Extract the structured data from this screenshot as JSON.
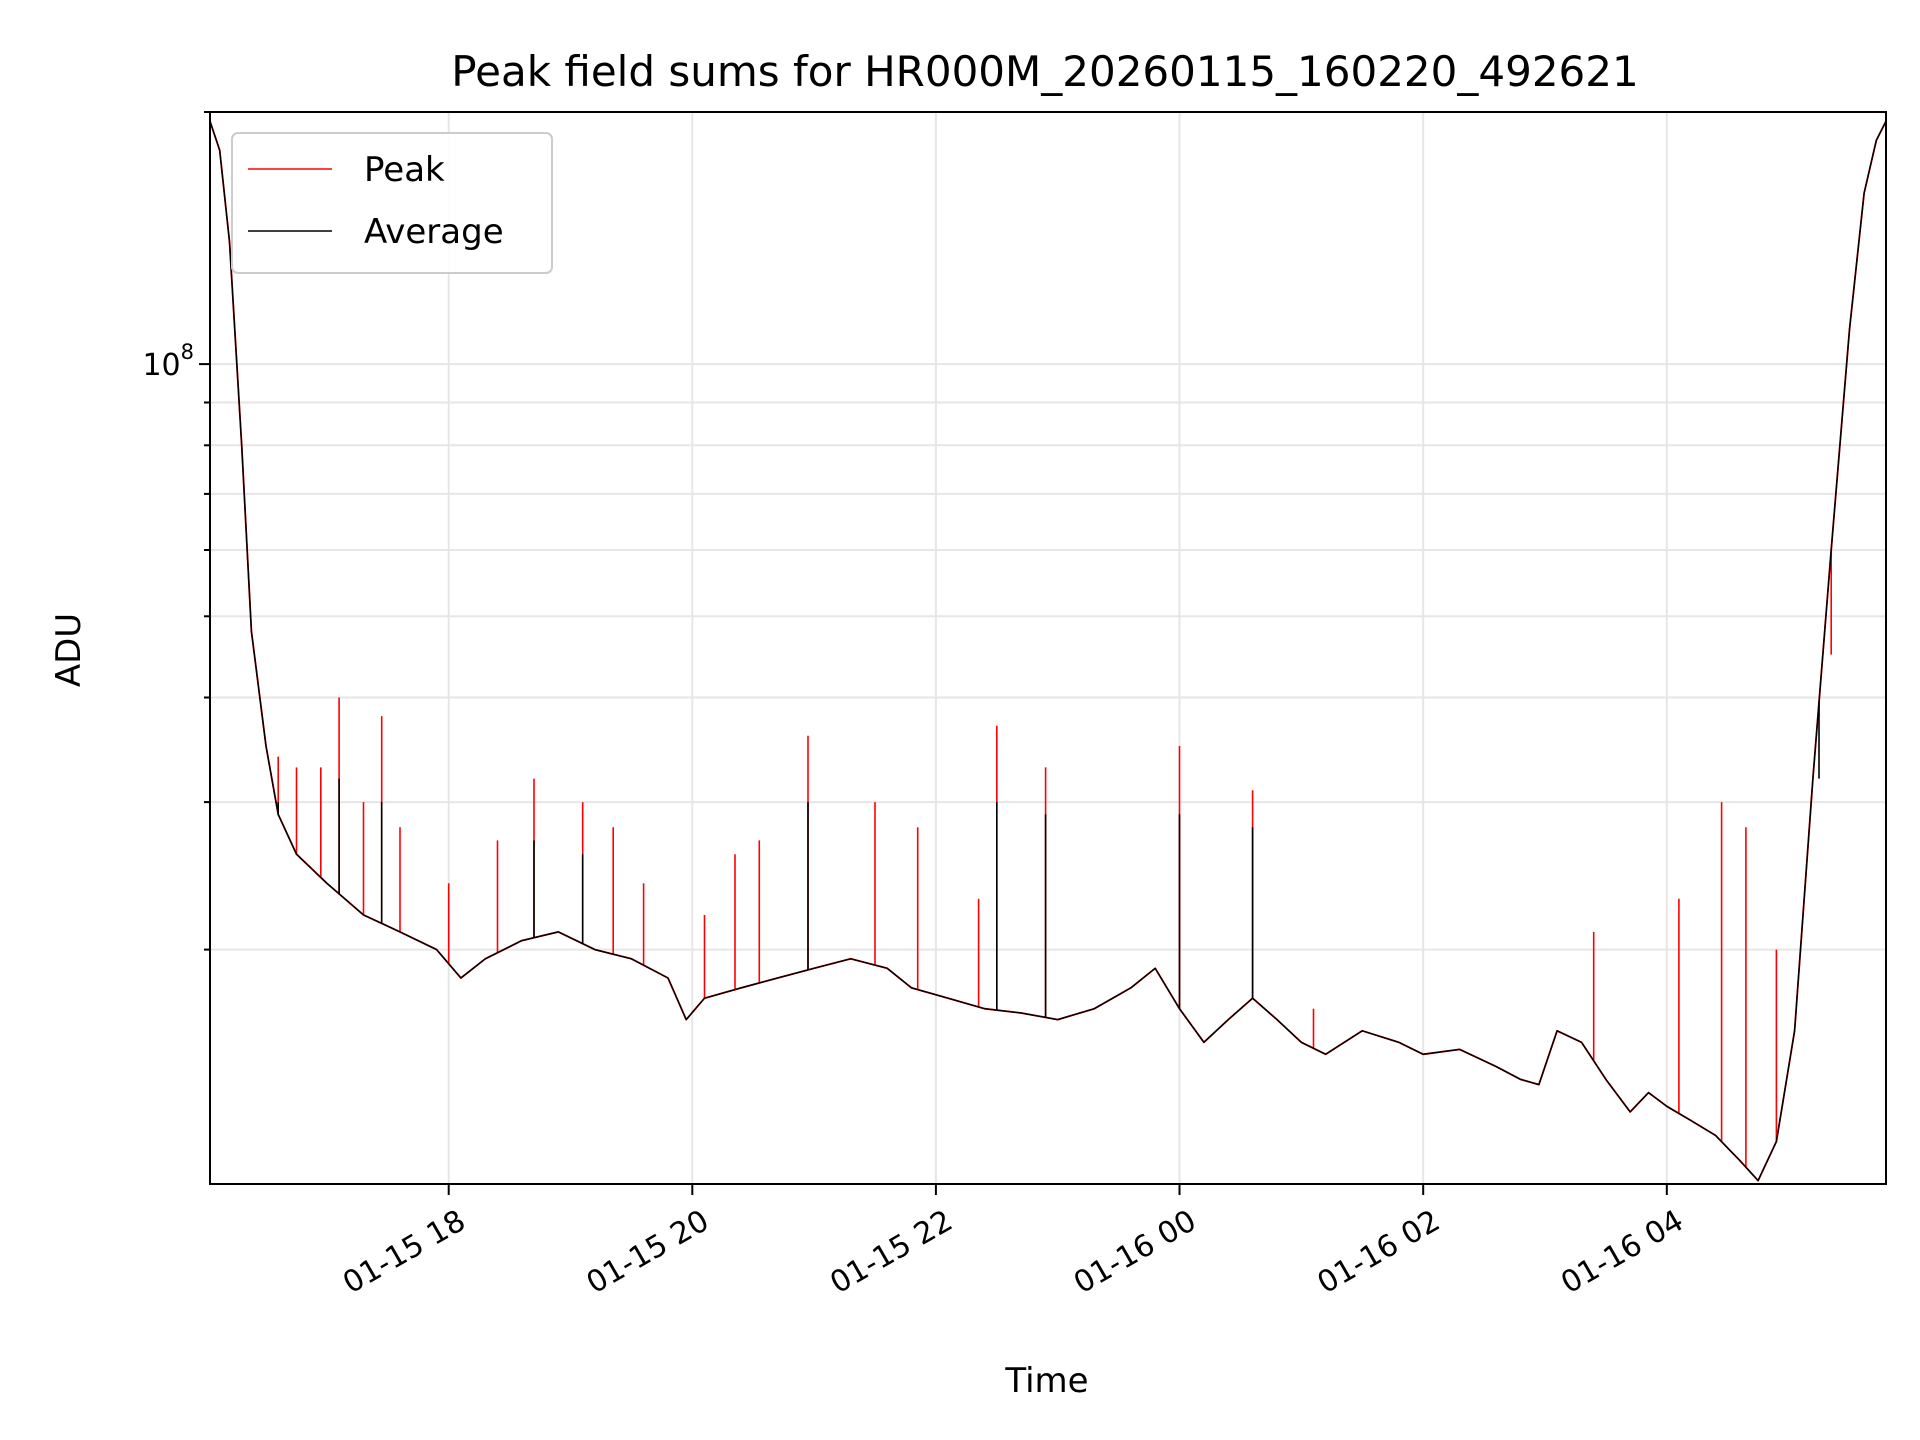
{
  "chart_data": {
    "type": "line",
    "title": "Peak field sums for HR000M_20260115_160220_492621",
    "xlabel": "Time",
    "ylabel": "ADU",
    "yscale": "log",
    "ylim": [
      10500000,
      200000000
    ],
    "xlim_hours": [
      16.04,
      29.8
    ],
    "x_ticks": [
      {
        "label": "01-15 18",
        "hours": 18
      },
      {
        "label": "01-15 20",
        "hours": 20
      },
      {
        "label": "01-15 22",
        "hours": 22
      },
      {
        "label": "01-16 00",
        "hours": 24
      },
      {
        "label": "01-16 02",
        "hours": 26
      },
      {
        "label": "01-16 04",
        "hours": 28
      }
    ],
    "y_major_tick": {
      "base": "10",
      "exp": "8",
      "value": 100000000
    },
    "y_minor_ticks": [
      20000000,
      30000000,
      40000000,
      50000000,
      60000000,
      70000000,
      80000000,
      90000000,
      200000000
    ],
    "grid": true,
    "legend_position": "top-left",
    "series": [
      {
        "name": "Peak",
        "color": "#ff0000",
        "points_hours_adu": [
          [
            16.04,
            195000000
          ],
          [
            16.12,
            180000000
          ],
          [
            16.2,
            140000000
          ],
          [
            16.3,
            80000000
          ],
          [
            16.38,
            48000000
          ],
          [
            16.5,
            35000000
          ],
          [
            16.6,
            29000000
          ],
          [
            16.75,
            26000000
          ],
          [
            17.0,
            24000000
          ],
          [
            17.3,
            22000000
          ],
          [
            17.6,
            21000000
          ],
          [
            17.9,
            20000000
          ],
          [
            18.1,
            18500000
          ],
          [
            18.3,
            19500000
          ],
          [
            18.6,
            20500000
          ],
          [
            18.9,
            21000000
          ],
          [
            19.2,
            20000000
          ],
          [
            19.5,
            19500000
          ],
          [
            19.8,
            18500000
          ],
          [
            19.95,
            16500000
          ],
          [
            20.1,
            17500000
          ],
          [
            20.4,
            18000000
          ],
          [
            20.7,
            18500000
          ],
          [
            21.0,
            19000000
          ],
          [
            21.3,
            19500000
          ],
          [
            21.6,
            19000000
          ],
          [
            21.8,
            18000000
          ],
          [
            22.1,
            17500000
          ],
          [
            22.4,
            17000000
          ],
          [
            22.7,
            16800000
          ],
          [
            23.0,
            16500000
          ],
          [
            23.3,
            17000000
          ],
          [
            23.6,
            18000000
          ],
          [
            23.8,
            19000000
          ],
          [
            24.0,
            17000000
          ],
          [
            24.2,
            15500000
          ],
          [
            24.4,
            16500000
          ],
          [
            24.6,
            17500000
          ],
          [
            24.8,
            16500000
          ],
          [
            25.0,
            15500000
          ],
          [
            25.2,
            15000000
          ],
          [
            25.5,
            16000000
          ],
          [
            25.8,
            15500000
          ],
          [
            26.0,
            15000000
          ],
          [
            26.3,
            15200000
          ],
          [
            26.6,
            14500000
          ],
          [
            26.8,
            14000000
          ],
          [
            26.95,
            13800000
          ],
          [
            27.1,
            16000000
          ],
          [
            27.3,
            15500000
          ],
          [
            27.5,
            14000000
          ],
          [
            27.7,
            12800000
          ],
          [
            27.85,
            13500000
          ],
          [
            28.0,
            13000000
          ],
          [
            28.2,
            12500000
          ],
          [
            28.4,
            12000000
          ],
          [
            28.6,
            11200000
          ],
          [
            28.75,
            10600000
          ],
          [
            28.9,
            11800000
          ],
          [
            29.05,
            16000000
          ],
          [
            29.2,
            32000000
          ],
          [
            29.35,
            60000000
          ],
          [
            29.5,
            110000000
          ],
          [
            29.62,
            160000000
          ],
          [
            29.72,
            185000000
          ],
          [
            29.8,
            195000000
          ]
        ],
        "spikes_hours_adu": [
          [
            16.6,
            34000000
          ],
          [
            16.75,
            33000000
          ],
          [
            16.95,
            33000000
          ],
          [
            17.1,
            40000000
          ],
          [
            17.3,
            30000000
          ],
          [
            17.45,
            38000000
          ],
          [
            17.6,
            28000000
          ],
          [
            18.0,
            24000000
          ],
          [
            18.4,
            27000000
          ],
          [
            18.7,
            32000000
          ],
          [
            19.1,
            30000000
          ],
          [
            19.35,
            28000000
          ],
          [
            19.6,
            24000000
          ],
          [
            20.1,
            22000000
          ],
          [
            20.35,
            26000000
          ],
          [
            20.55,
            27000000
          ],
          [
            20.95,
            36000000
          ],
          [
            21.5,
            30000000
          ],
          [
            21.85,
            28000000
          ],
          [
            22.35,
            23000000
          ],
          [
            22.5,
            37000000
          ],
          [
            22.9,
            33000000
          ],
          [
            24.0,
            35000000
          ],
          [
            24.6,
            31000000
          ],
          [
            25.1,
            17000000
          ],
          [
            27.4,
            21000000
          ],
          [
            28.1,
            23000000
          ],
          [
            28.45,
            30000000
          ],
          [
            28.65,
            28000000
          ],
          [
            28.9,
            20000000
          ],
          [
            29.25,
            38000000
          ],
          [
            29.35,
            45000000
          ]
        ]
      },
      {
        "name": "Average",
        "color": "#000000",
        "points_hours_adu": [
          [
            16.04,
            195000000
          ],
          [
            16.12,
            180000000
          ],
          [
            16.2,
            140000000
          ],
          [
            16.3,
            80000000
          ],
          [
            16.38,
            48000000
          ],
          [
            16.5,
            35000000
          ],
          [
            16.6,
            29000000
          ],
          [
            16.75,
            26000000
          ],
          [
            17.0,
            24000000
          ],
          [
            17.3,
            22000000
          ],
          [
            17.6,
            21000000
          ],
          [
            17.9,
            20000000
          ],
          [
            18.1,
            18500000
          ],
          [
            18.3,
            19500000
          ],
          [
            18.6,
            20500000
          ],
          [
            18.9,
            21000000
          ],
          [
            19.2,
            20000000
          ],
          [
            19.5,
            19500000
          ],
          [
            19.8,
            18500000
          ],
          [
            19.95,
            16500000
          ],
          [
            20.1,
            17500000
          ],
          [
            20.4,
            18000000
          ],
          [
            20.7,
            18500000
          ],
          [
            21.0,
            19000000
          ],
          [
            21.3,
            19500000
          ],
          [
            21.6,
            19000000
          ],
          [
            21.8,
            18000000
          ],
          [
            22.1,
            17500000
          ],
          [
            22.4,
            17000000
          ],
          [
            22.7,
            16800000
          ],
          [
            23.0,
            16500000
          ],
          [
            23.3,
            17000000
          ],
          [
            23.6,
            18000000
          ],
          [
            23.8,
            19000000
          ],
          [
            24.0,
            17000000
          ],
          [
            24.2,
            15500000
          ],
          [
            24.4,
            16500000
          ],
          [
            24.6,
            17500000
          ],
          [
            24.8,
            16500000
          ],
          [
            25.0,
            15500000
          ],
          [
            25.2,
            15000000
          ],
          [
            25.5,
            16000000
          ],
          [
            25.8,
            15500000
          ],
          [
            26.0,
            15000000
          ],
          [
            26.3,
            15200000
          ],
          [
            26.6,
            14500000
          ],
          [
            26.8,
            14000000
          ],
          [
            26.95,
            13800000
          ],
          [
            27.1,
            16000000
          ],
          [
            27.3,
            15500000
          ],
          [
            27.5,
            14000000
          ],
          [
            27.7,
            12800000
          ],
          [
            27.85,
            13500000
          ],
          [
            28.0,
            13000000
          ],
          [
            28.2,
            12500000
          ],
          [
            28.4,
            12000000
          ],
          [
            28.6,
            11200000
          ],
          [
            28.75,
            10600000
          ],
          [
            28.9,
            11800000
          ],
          [
            29.05,
            16000000
          ],
          [
            29.2,
            32000000
          ],
          [
            29.35,
            60000000
          ],
          [
            29.5,
            110000000
          ],
          [
            29.62,
            160000000
          ],
          [
            29.72,
            185000000
          ],
          [
            29.8,
            195000000
          ]
        ],
        "spikes_hours_adu": [
          [
            16.6,
            30000000
          ],
          [
            17.1,
            32000000
          ],
          [
            17.45,
            30000000
          ],
          [
            18.7,
            27000000
          ],
          [
            19.1,
            26000000
          ],
          [
            20.95,
            30000000
          ],
          [
            22.5,
            30000000
          ],
          [
            22.9,
            29000000
          ],
          [
            24.0,
            29000000
          ],
          [
            24.6,
            28000000
          ],
          [
            29.25,
            32000000
          ]
        ]
      }
    ]
  }
}
